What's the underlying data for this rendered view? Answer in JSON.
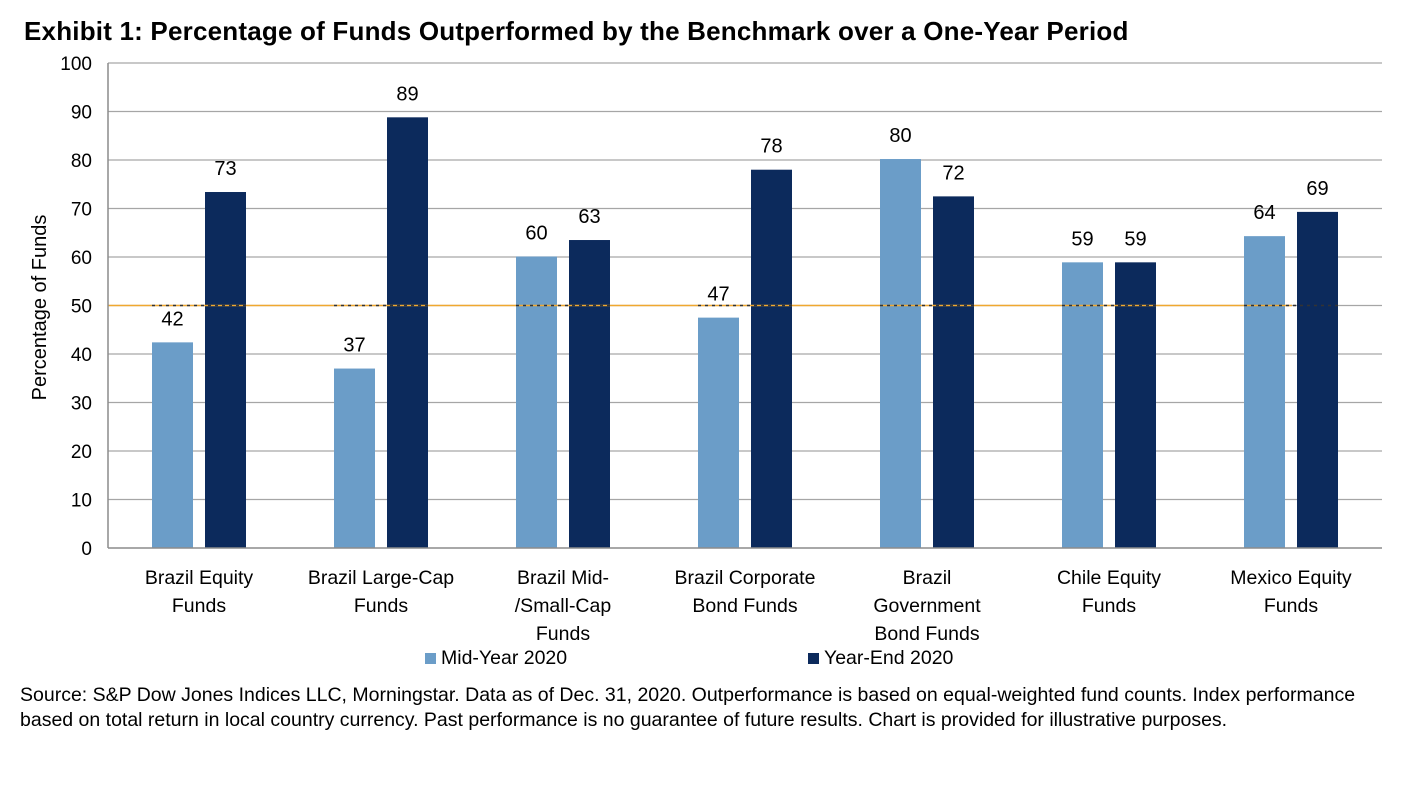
{
  "chart_data": {
    "type": "bar",
    "title": "Exhibit 1: Percentage of Funds Outperformed by the Benchmark over a One-Year Period",
    "ylabel": "Percentage of Funds",
    "xlabel": "",
    "ylim": [
      0,
      100
    ],
    "yticks": [
      0,
      10,
      20,
      30,
      40,
      50,
      60,
      70,
      80,
      90,
      100
    ],
    "grid": true,
    "legend_position": "bottom",
    "reference_line": {
      "value": 50,
      "color": "#f0a830",
      "style": "solid-dashed"
    },
    "categories": [
      [
        "Brazil Equity",
        "Funds"
      ],
      [
        "Brazil Large-Cap",
        "Funds"
      ],
      [
        "Brazil Mid-",
        "/Small-Cap",
        "Funds"
      ],
      [
        "Brazil Corporate",
        "Bond Funds"
      ],
      [
        "Brazil",
        "Government",
        "Bond Funds"
      ],
      [
        "Chile Equity",
        "Funds"
      ],
      [
        "Mexico Equity",
        "Funds"
      ]
    ],
    "series": [
      {
        "name": "Mid-Year 2020",
        "color": "#6b9dc8",
        "values": [
          42.4,
          37.0,
          60.1,
          47.5,
          80.2,
          58.9,
          64.3
        ],
        "labels": [
          "42",
          "37",
          "60",
          "47",
          "80",
          "59",
          "64"
        ]
      },
      {
        "name": "Year-End 2020",
        "color": "#0c2a5c",
        "values": [
          73.4,
          88.8,
          63.5,
          78.0,
          72.5,
          58.9,
          69.3
        ],
        "labels": [
          "73",
          "89",
          "63",
          "78",
          "72",
          "59",
          "69"
        ]
      }
    ]
  },
  "source_note": "Source: S&P Dow Jones Indices LLC, Morningstar. Data as of Dec. 31, 2020. Outperformance is based on equal-weighted fund counts. Index performance based on total return in local country currency. Past performance is no guarantee of future results. Chart is provided for illustrative purposes."
}
